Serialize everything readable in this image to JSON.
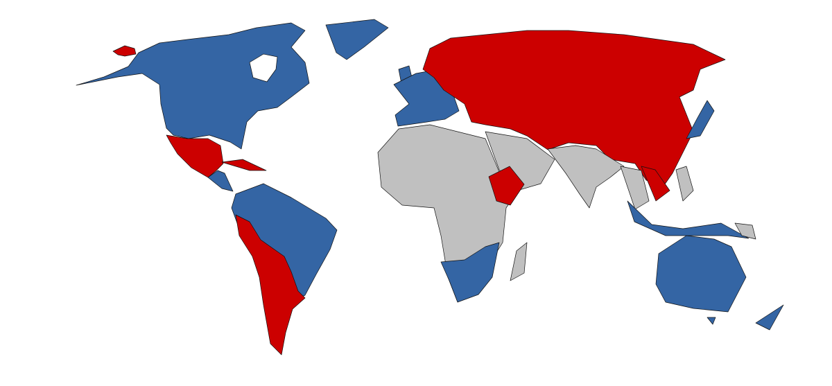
{
  "map": {
    "colors": {
      "group_a": "#3465a4",
      "group_b": "#cc0000",
      "neutral": "#c0c0c0",
      "background": "#ffffff",
      "border": "#111111"
    }
  }
}
